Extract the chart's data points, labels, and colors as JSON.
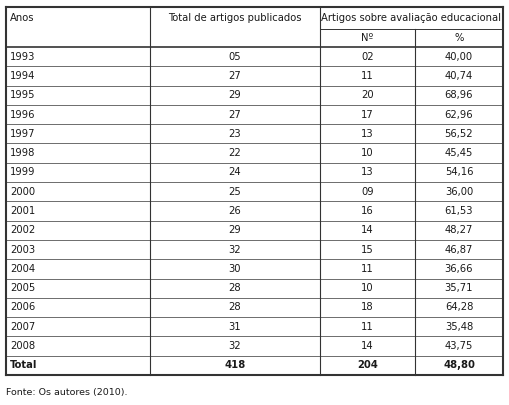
{
  "header_row1": [
    "Anos",
    "Total de artigos publicados",
    "Artigos sobre avaliação educacional",
    ""
  ],
  "header_row2": [
    "",
    "",
    "Nº",
    "%"
  ],
  "rows": [
    [
      "1993",
      "05",
      "02",
      "40,00"
    ],
    [
      "1994",
      "27",
      "11",
      "40,74"
    ],
    [
      "1995",
      "29",
      "20",
      "68,96"
    ],
    [
      "1996",
      "27",
      "17",
      "62,96"
    ],
    [
      "1997",
      "23",
      "13",
      "56,52"
    ],
    [
      "1998",
      "22",
      "10",
      "45,45"
    ],
    [
      "1999",
      "24",
      "13",
      "54,16"
    ],
    [
      "2000",
      "25",
      "09",
      "36,00"
    ],
    [
      "2001",
      "26",
      "16",
      "61,53"
    ],
    [
      "2002",
      "29",
      "14",
      "48,27"
    ],
    [
      "2003",
      "32",
      "15",
      "46,87"
    ],
    [
      "2004",
      "30",
      "11",
      "36,66"
    ],
    [
      "2005",
      "28",
      "10",
      "35,71"
    ],
    [
      "2006",
      "28",
      "18",
      "64,28"
    ],
    [
      "2007",
      "31",
      "11",
      "35,48"
    ],
    [
      "2008",
      "32",
      "14",
      "43,75"
    ]
  ],
  "total_row": [
    "Total",
    "418",
    "204",
    "48,80"
  ],
  "footer": "Fonte: Os autores (2010).",
  "bg_color": "#ffffff",
  "text_color": "#1a1a1a",
  "line_color": "#333333",
  "fontsize": 7.2,
  "footer_fontsize": 6.8
}
